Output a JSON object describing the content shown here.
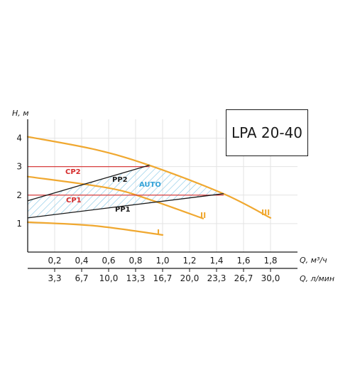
{
  "model": "LPA 20-40",
  "chart_data": {
    "type": "line",
    "title": "",
    "ylabel": "H, м",
    "xlabel": "Q, м³/ч",
    "xlabel2": "Q, л/мин",
    "xlim": [
      0,
      2.0
    ],
    "ylim": [
      0,
      4.6
    ],
    "x_ticks": [
      "0,2",
      "0,4",
      "0,6",
      "0,8",
      "1,0",
      "1,2",
      "1,4",
      "1,6",
      "1,8"
    ],
    "x_tick_values": [
      0.2,
      0.4,
      0.6,
      0.8,
      1.0,
      1.2,
      1.4,
      1.6,
      1.8
    ],
    "x2_ticks": [
      "3,3",
      "6,7",
      "10,0",
      "13,3",
      "16,7",
      "20,0",
      "23,3",
      "26,7",
      "30,0"
    ],
    "y_ticks": [
      "1",
      "2",
      "3",
      "4"
    ],
    "y_tick_values": [
      1,
      2,
      3,
      4
    ],
    "grid": true,
    "colors": {
      "speed": "#f0a830",
      "constant": "#d52b2b",
      "proportional": "#1a1a1a",
      "auto": "#35a3d8",
      "hatch": "#7fc4e4"
    },
    "series": [
      {
        "name": "I",
        "kind": "speed",
        "x": [
          0,
          0.5,
          1.0
        ],
        "y": [
          1.05,
          0.92,
          0.6
        ]
      },
      {
        "name": "II",
        "kind": "speed",
        "x": [
          0,
          0.6,
          0.9,
          1.3
        ],
        "y": [
          2.65,
          2.25,
          1.85,
          1.18
        ]
      },
      {
        "name": "III",
        "kind": "speed",
        "x": [
          0,
          0.5,
          0.9,
          1.45,
          1.8
        ],
        "y": [
          4.05,
          3.6,
          3.05,
          2.05,
          1.2
        ]
      },
      {
        "name": "CP2",
        "kind": "constant",
        "x": [
          0,
          0.9
        ],
        "y": [
          3.0,
          3.0
        ]
      },
      {
        "name": "CP1",
        "kind": "constant",
        "x": [
          0,
          1.45
        ],
        "y": [
          2.0,
          2.0
        ]
      },
      {
        "name": "PP2",
        "kind": "proportional",
        "x": [
          0,
          0.9
        ],
        "y": [
          1.8,
          3.05
        ]
      },
      {
        "name": "PP1",
        "kind": "proportional",
        "x": [
          0,
          1.45
        ],
        "y": [
          1.2,
          2.05
        ]
      }
    ],
    "auto_region_label": "AUTO"
  }
}
